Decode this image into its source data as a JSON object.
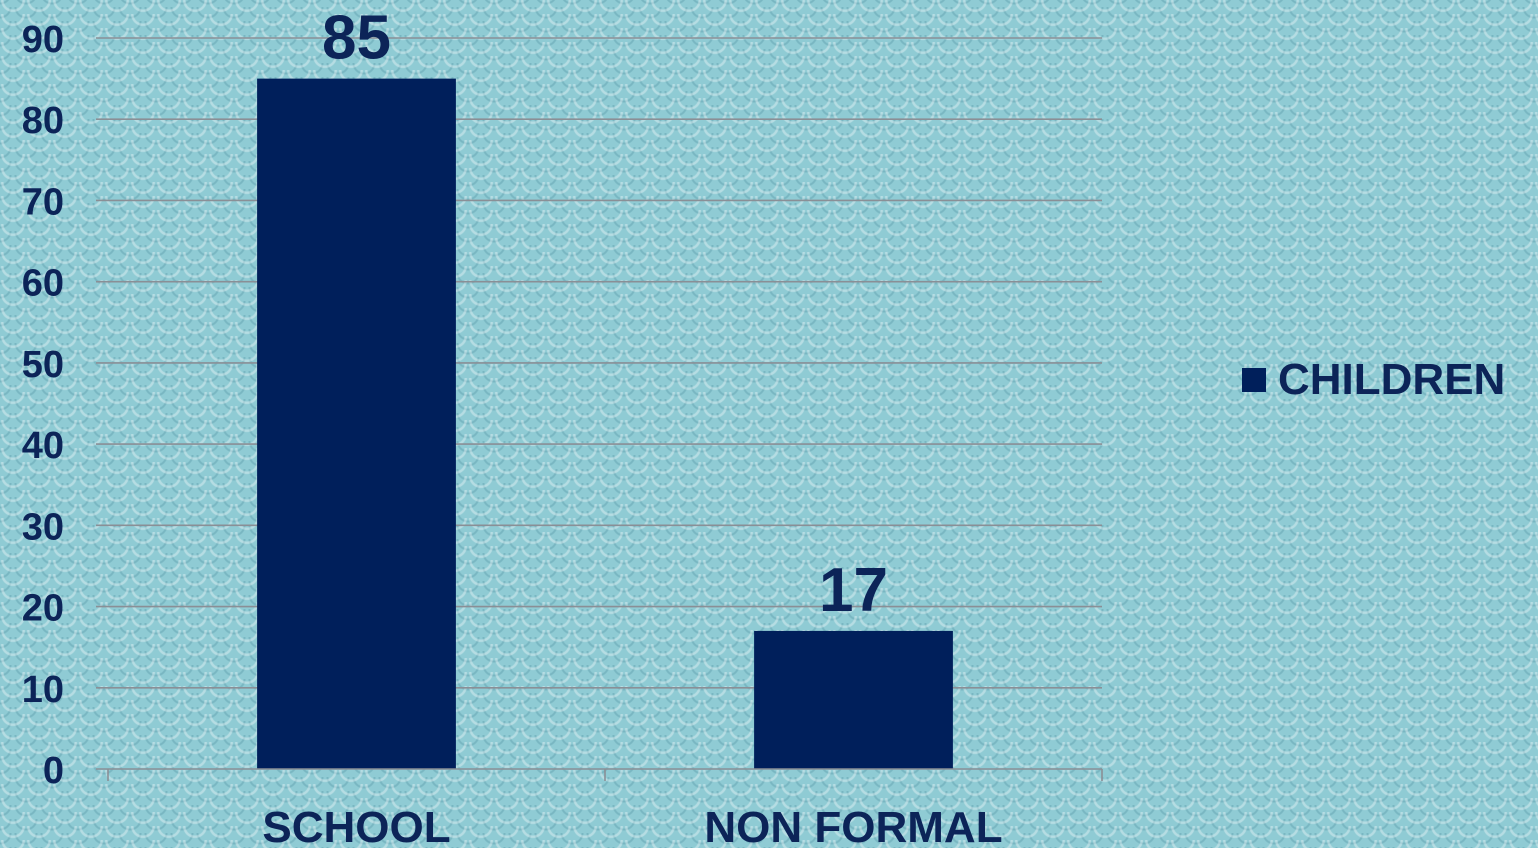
{
  "chart_data": {
    "type": "bar",
    "categories": [
      "SCHOOL",
      "NON FORMAL"
    ],
    "series": [
      {
        "name": "CHILDREN",
        "values": [
          85,
          17
        ],
        "color": "#001f5b"
      }
    ],
    "data_labels": [
      "85",
      "17"
    ],
    "ylim": [
      0,
      90
    ],
    "y_ticks": [
      0,
      10,
      20,
      30,
      40,
      50,
      60,
      70,
      80,
      90
    ],
    "y_tick_labels": [
      "0",
      "10",
      "20",
      "30",
      "40",
      "50",
      "60",
      "70",
      "80",
      "90"
    ],
    "grid": true,
    "legend_position": "right",
    "title": "",
    "xlabel": "",
    "ylabel": ""
  },
  "colors": {
    "bar": "#001f5b",
    "text": "#0c2458",
    "grid": "#8a8f96",
    "background": "#8fcbd4"
  }
}
